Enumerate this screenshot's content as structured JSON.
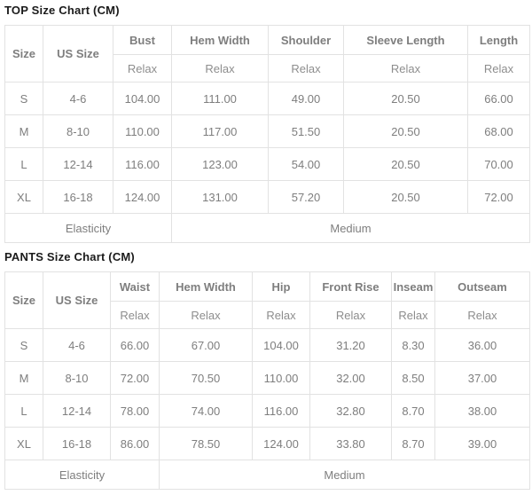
{
  "colors": {
    "title_text": "#1b1b1b",
    "dark_header_bg": "#4d4d4d",
    "dark_header_text": "#ffffff",
    "light_header_bg": "#f5f5f5",
    "header_text": "#333333",
    "cell_text": "#7e7e7e",
    "border": "#e2e2e2"
  },
  "chart_data": [
    {
      "type": "table",
      "title": "TOP Size Chart (CM)",
      "corner": {
        "size_header": "Size",
        "us_size_header": "US Size"
      },
      "columns": [
        "Bust",
        "Hem Width",
        "Shoulder",
        "Sleeve Length",
        "Length"
      ],
      "fit_labels": [
        "Relax",
        "Relax",
        "Relax",
        "Relax",
        "Relax"
      ],
      "rows": [
        {
          "size": "S",
          "us_size": "4-6",
          "values": [
            "104.00",
            "111.00",
            "49.00",
            "20.50",
            "66.00"
          ]
        },
        {
          "size": "M",
          "us_size": "8-10",
          "values": [
            "110.00",
            "117.00",
            "51.50",
            "20.50",
            "68.00"
          ]
        },
        {
          "size": "L",
          "us_size": "12-14",
          "values": [
            "116.00",
            "123.00",
            "54.00",
            "20.50",
            "70.00"
          ]
        },
        {
          "size": "XL",
          "us_size": "16-18",
          "values": [
            "124.00",
            "131.00",
            "57.20",
            "20.50",
            "72.00"
          ]
        }
      ],
      "footer": {
        "label": "Elasticity",
        "value": "Medium"
      }
    },
    {
      "type": "table",
      "title": "PANTS Size Chart (CM)",
      "corner": {
        "size_header": "Size",
        "us_size_header": "US Size"
      },
      "columns": [
        "Waist",
        "Hem Width",
        "Hip",
        "Front Rise",
        "Inseam",
        "Outseam"
      ],
      "fit_labels": [
        "Relax",
        "Relax",
        "Relax",
        "Relax",
        "Relax",
        "Relax"
      ],
      "rows": [
        {
          "size": "S",
          "us_size": "4-6",
          "values": [
            "66.00",
            "67.00",
            "104.00",
            "31.20",
            "8.30",
            "36.00"
          ]
        },
        {
          "size": "M",
          "us_size": "8-10",
          "values": [
            "72.00",
            "70.50",
            "110.00",
            "32.00",
            "8.50",
            "37.00"
          ]
        },
        {
          "size": "L",
          "us_size": "12-14",
          "values": [
            "78.00",
            "74.00",
            "116.00",
            "32.80",
            "8.70",
            "38.00"
          ]
        },
        {
          "size": "XL",
          "us_size": "16-18",
          "values": [
            "86.00",
            "78.50",
            "124.00",
            "33.80",
            "8.70",
            "39.00"
          ]
        }
      ],
      "footer": {
        "label": "Elasticity",
        "value": "Medium"
      }
    }
  ]
}
